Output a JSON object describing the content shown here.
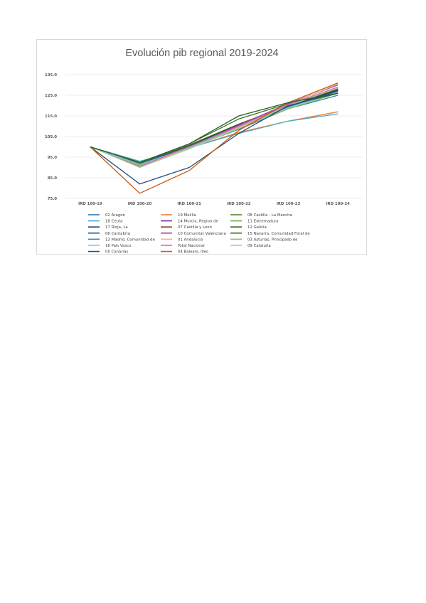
{
  "chart_data": {
    "type": "line",
    "title": "Evolución pib regional 2019-2024",
    "xlabel": "",
    "ylabel": "",
    "categories": [
      "IRD 100-19",
      "IRD 100-20",
      "IRD 100-21",
      "IRD 100-22",
      "IRD 100-23",
      "IRD 100-24"
    ],
    "ylim": [
      75,
      135
    ],
    "yticks": [
      "75.0",
      "85.0",
      "95.0",
      "105.0",
      "115.0",
      "125.0",
      "135.0"
    ],
    "grid": true,
    "legend_position": "bottom",
    "series": [
      {
        "name": "02 Aragon",
        "color": "#2e75b6",
        "values": [
          100,
          91.5,
          100,
          110.5,
          119.5,
          127.5
        ]
      },
      {
        "name": "19 Melilla",
        "color": "#ed7d31",
        "values": [
          100,
          92,
          99.5,
          107,
          112.5,
          117
        ]
      },
      {
        "name": "08 Castilla - La Mancha",
        "color": "#548235",
        "values": [
          100,
          92,
          101,
          111,
          120,
          128
        ]
      },
      {
        "name": "18 Ceuta",
        "color": "#4bacc6",
        "values": [
          100,
          93,
          99.5,
          106.5,
          112.5,
          116
        ]
      },
      {
        "name": "14 Murcia, Region de",
        "color": "#7030a0",
        "values": [
          100,
          91,
          100,
          110,
          120,
          128.5
        ]
      },
      {
        "name": "11 Extremadura",
        "color": "#70ad47",
        "values": [
          100,
          91.5,
          100,
          109.5,
          119,
          127
        ]
      },
      {
        "name": "17 Rioja, La",
        "color": "#203864",
        "values": [
          100,
          91.5,
          100.5,
          111,
          120,
          127.5
        ]
      },
      {
        "name": "07 Castilla y Leon",
        "color": "#843c0c",
        "values": [
          100,
          91,
          100,
          109.5,
          119.5,
          128
        ]
      },
      {
        "name": "12 Galicia",
        "color": "#375623",
        "values": [
          100,
          92,
          100.5,
          111,
          120,
          128
        ]
      },
      {
        "name": "06 Cantabria",
        "color": "#2f5597",
        "values": [
          100,
          92,
          100,
          110,
          119.5,
          127
        ]
      },
      {
        "name": "10 Comunitat Valenciana",
        "color": "#9c4ba3",
        "values": [
          100,
          90.5,
          99.5,
          110.5,
          121,
          130
        ]
      },
      {
        "name": "15 Navarra, Comunidad Foral de",
        "color": "#38761d",
        "values": [
          100,
          92,
          101.5,
          113.5,
          121,
          128
        ]
      },
      {
        "name": "13 Madrid, Comunidad de",
        "color": "#31859c",
        "values": [
          100,
          91,
          99.5,
          108.5,
          118.5,
          125
        ]
      },
      {
        "name": "01 Andalucia",
        "color": "#f4b183",
        "values": [
          100,
          90.5,
          99.5,
          109.5,
          120.5,
          130.5
        ]
      },
      {
        "name": "03 Asturias, Principado de",
        "color": "#8fbc5f",
        "values": [
          100,
          91,
          100,
          109,
          118.5,
          126
        ]
      },
      {
        "name": "16 Pais Vasco",
        "color": "#7fc7e8",
        "values": [
          100,
          91.5,
          99.5,
          109,
          119,
          126.5
        ]
      },
      {
        "name": "Total Nacional",
        "color": "#d467c9",
        "values": [
          100,
          90.5,
          100,
          110,
          120.5,
          129
        ]
      },
      {
        "name": "09 Cataluña",
        "color": "#a9d18e",
        "values": [
          100,
          90,
          99,
          109,
          120,
          128.5
        ]
      },
      {
        "name": "05 Canarias",
        "color": "#1f4e79",
        "values": [
          100,
          82,
          90,
          106.5,
          120,
          126
        ]
      },
      {
        "name": "04 Balears, Illes",
        "color": "#c55a11",
        "values": [
          100,
          77.5,
          88.5,
          108,
          121.5,
          131
        ]
      },
      {
        "name": "",
        "color": "#2a5f2a",
        "values": [
          100,
          92.5,
          101.5,
          115,
          121.5,
          126
        ]
      }
    ]
  }
}
